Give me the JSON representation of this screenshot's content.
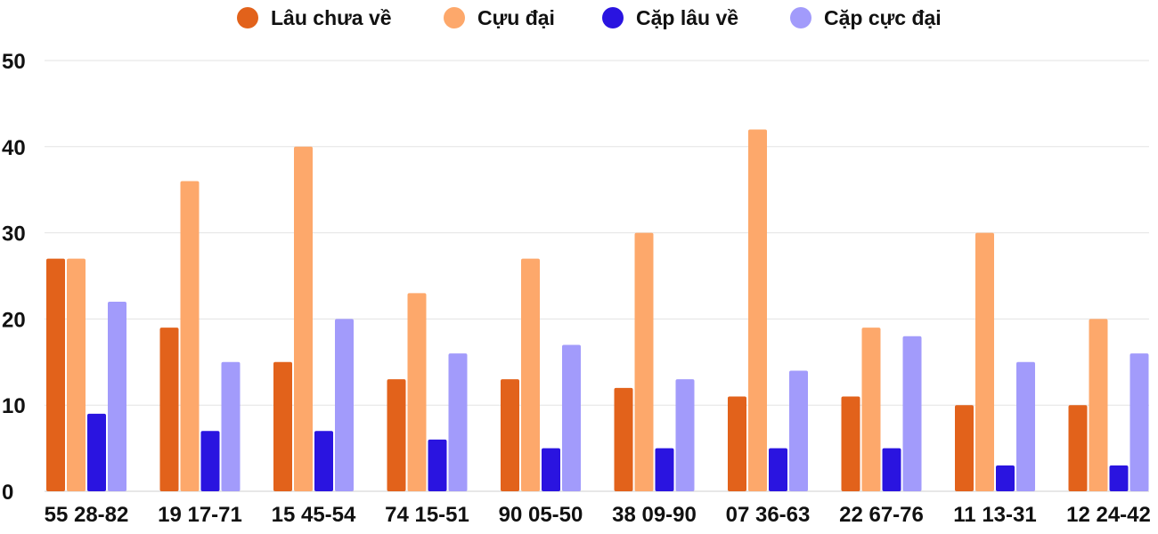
{
  "chart_data": {
    "type": "bar",
    "categories": [
      "55 28-82",
      "19 17-71",
      "15 45-54",
      "74 15-51",
      "90 05-50",
      "38 09-90",
      "07 36-63",
      "22 67-76",
      "11 13-31",
      "12 24-42"
    ],
    "series": [
      {
        "name": "Lâu chưa về",
        "color": "#e2621b",
        "values": [
          27,
          19,
          15,
          13,
          13,
          12,
          11,
          11,
          10,
          10
        ]
      },
      {
        "name": "Cựu đại",
        "color": "#fda86b",
        "values": [
          27,
          36,
          40,
          23,
          27,
          30,
          42,
          19,
          30,
          20
        ]
      },
      {
        "name": "Cặp lâu về",
        "color": "#2a14e0",
        "values": [
          9,
          7,
          7,
          6,
          5,
          5,
          5,
          5,
          3,
          3
        ]
      },
      {
        "name": "Cặp cực đại",
        "color": "#a29bfb",
        "values": [
          22,
          15,
          20,
          16,
          17,
          13,
          14,
          18,
          15,
          16
        ]
      }
    ],
    "ylim": [
      0,
      50
    ],
    "yticks": [
      "0",
      "10",
      "20",
      "30",
      "40",
      "50"
    ],
    "legend_position": "top",
    "grid": true
  }
}
